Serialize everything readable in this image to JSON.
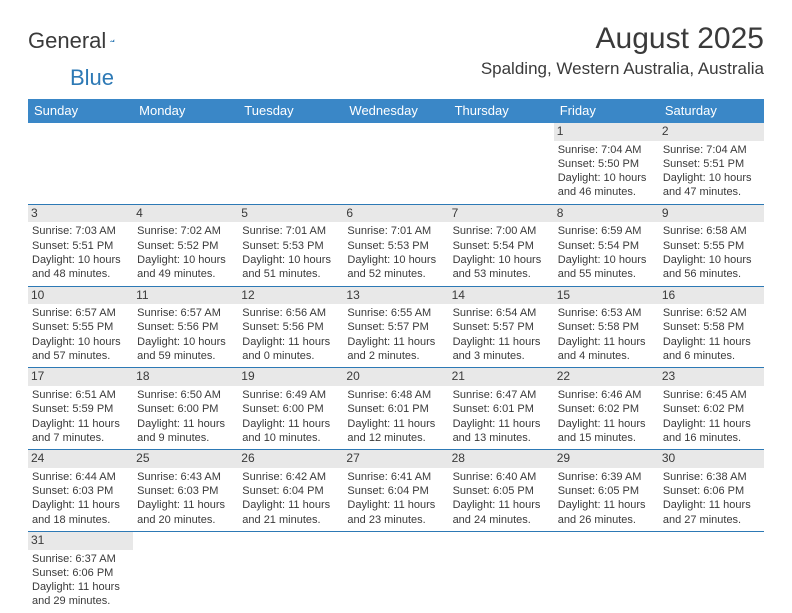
{
  "logo": {
    "text1": "General",
    "text2": "Blue"
  },
  "header": {
    "month": "August 2025",
    "location": "Spalding, Western Australia, Australia"
  },
  "colors": {
    "header_bg": "#3a87c7",
    "header_fg": "#ffffff",
    "daynum_bg": "#e8e8e8",
    "rule": "#2d79b5",
    "text": "#3a3a3a"
  },
  "dayNames": [
    "Sunday",
    "Monday",
    "Tuesday",
    "Wednesday",
    "Thursday",
    "Friday",
    "Saturday"
  ],
  "weeks": [
    [
      null,
      null,
      null,
      null,
      null,
      {
        "n": "1",
        "sr": "Sunrise: 7:04 AM",
        "ss": "Sunset: 5:50 PM",
        "d1": "Daylight: 10 hours",
        "d2": "and 46 minutes."
      },
      {
        "n": "2",
        "sr": "Sunrise: 7:04 AM",
        "ss": "Sunset: 5:51 PM",
        "d1": "Daylight: 10 hours",
        "d2": "and 47 minutes."
      }
    ],
    [
      {
        "n": "3",
        "sr": "Sunrise: 7:03 AM",
        "ss": "Sunset: 5:51 PM",
        "d1": "Daylight: 10 hours",
        "d2": "and 48 minutes."
      },
      {
        "n": "4",
        "sr": "Sunrise: 7:02 AM",
        "ss": "Sunset: 5:52 PM",
        "d1": "Daylight: 10 hours",
        "d2": "and 49 minutes."
      },
      {
        "n": "5",
        "sr": "Sunrise: 7:01 AM",
        "ss": "Sunset: 5:53 PM",
        "d1": "Daylight: 10 hours",
        "d2": "and 51 minutes."
      },
      {
        "n": "6",
        "sr": "Sunrise: 7:01 AM",
        "ss": "Sunset: 5:53 PM",
        "d1": "Daylight: 10 hours",
        "d2": "and 52 minutes."
      },
      {
        "n": "7",
        "sr": "Sunrise: 7:00 AM",
        "ss": "Sunset: 5:54 PM",
        "d1": "Daylight: 10 hours",
        "d2": "and 53 minutes."
      },
      {
        "n": "8",
        "sr": "Sunrise: 6:59 AM",
        "ss": "Sunset: 5:54 PM",
        "d1": "Daylight: 10 hours",
        "d2": "and 55 minutes."
      },
      {
        "n": "9",
        "sr": "Sunrise: 6:58 AM",
        "ss": "Sunset: 5:55 PM",
        "d1": "Daylight: 10 hours",
        "d2": "and 56 minutes."
      }
    ],
    [
      {
        "n": "10",
        "sr": "Sunrise: 6:57 AM",
        "ss": "Sunset: 5:55 PM",
        "d1": "Daylight: 10 hours",
        "d2": "and 57 minutes."
      },
      {
        "n": "11",
        "sr": "Sunrise: 6:57 AM",
        "ss": "Sunset: 5:56 PM",
        "d1": "Daylight: 10 hours",
        "d2": "and 59 minutes."
      },
      {
        "n": "12",
        "sr": "Sunrise: 6:56 AM",
        "ss": "Sunset: 5:56 PM",
        "d1": "Daylight: 11 hours",
        "d2": "and 0 minutes."
      },
      {
        "n": "13",
        "sr": "Sunrise: 6:55 AM",
        "ss": "Sunset: 5:57 PM",
        "d1": "Daylight: 11 hours",
        "d2": "and 2 minutes."
      },
      {
        "n": "14",
        "sr": "Sunrise: 6:54 AM",
        "ss": "Sunset: 5:57 PM",
        "d1": "Daylight: 11 hours",
        "d2": "and 3 minutes."
      },
      {
        "n": "15",
        "sr": "Sunrise: 6:53 AM",
        "ss": "Sunset: 5:58 PM",
        "d1": "Daylight: 11 hours",
        "d2": "and 4 minutes."
      },
      {
        "n": "16",
        "sr": "Sunrise: 6:52 AM",
        "ss": "Sunset: 5:58 PM",
        "d1": "Daylight: 11 hours",
        "d2": "and 6 minutes."
      }
    ],
    [
      {
        "n": "17",
        "sr": "Sunrise: 6:51 AM",
        "ss": "Sunset: 5:59 PM",
        "d1": "Daylight: 11 hours",
        "d2": "and 7 minutes."
      },
      {
        "n": "18",
        "sr": "Sunrise: 6:50 AM",
        "ss": "Sunset: 6:00 PM",
        "d1": "Daylight: 11 hours",
        "d2": "and 9 minutes."
      },
      {
        "n": "19",
        "sr": "Sunrise: 6:49 AM",
        "ss": "Sunset: 6:00 PM",
        "d1": "Daylight: 11 hours",
        "d2": "and 10 minutes."
      },
      {
        "n": "20",
        "sr": "Sunrise: 6:48 AM",
        "ss": "Sunset: 6:01 PM",
        "d1": "Daylight: 11 hours",
        "d2": "and 12 minutes."
      },
      {
        "n": "21",
        "sr": "Sunrise: 6:47 AM",
        "ss": "Sunset: 6:01 PM",
        "d1": "Daylight: 11 hours",
        "d2": "and 13 minutes."
      },
      {
        "n": "22",
        "sr": "Sunrise: 6:46 AM",
        "ss": "Sunset: 6:02 PM",
        "d1": "Daylight: 11 hours",
        "d2": "and 15 minutes."
      },
      {
        "n": "23",
        "sr": "Sunrise: 6:45 AM",
        "ss": "Sunset: 6:02 PM",
        "d1": "Daylight: 11 hours",
        "d2": "and 16 minutes."
      }
    ],
    [
      {
        "n": "24",
        "sr": "Sunrise: 6:44 AM",
        "ss": "Sunset: 6:03 PM",
        "d1": "Daylight: 11 hours",
        "d2": "and 18 minutes."
      },
      {
        "n": "25",
        "sr": "Sunrise: 6:43 AM",
        "ss": "Sunset: 6:03 PM",
        "d1": "Daylight: 11 hours",
        "d2": "and 20 minutes."
      },
      {
        "n": "26",
        "sr": "Sunrise: 6:42 AM",
        "ss": "Sunset: 6:04 PM",
        "d1": "Daylight: 11 hours",
        "d2": "and 21 minutes."
      },
      {
        "n": "27",
        "sr": "Sunrise: 6:41 AM",
        "ss": "Sunset: 6:04 PM",
        "d1": "Daylight: 11 hours",
        "d2": "and 23 minutes."
      },
      {
        "n": "28",
        "sr": "Sunrise: 6:40 AM",
        "ss": "Sunset: 6:05 PM",
        "d1": "Daylight: 11 hours",
        "d2": "and 24 minutes."
      },
      {
        "n": "29",
        "sr": "Sunrise: 6:39 AM",
        "ss": "Sunset: 6:05 PM",
        "d1": "Daylight: 11 hours",
        "d2": "and 26 minutes."
      },
      {
        "n": "30",
        "sr": "Sunrise: 6:38 AM",
        "ss": "Sunset: 6:06 PM",
        "d1": "Daylight: 11 hours",
        "d2": "and 27 minutes."
      }
    ],
    [
      {
        "n": "31",
        "sr": "Sunrise: 6:37 AM",
        "ss": "Sunset: 6:06 PM",
        "d1": "Daylight: 11 hours",
        "d2": "and 29 minutes."
      },
      null,
      null,
      null,
      null,
      null,
      null
    ]
  ]
}
